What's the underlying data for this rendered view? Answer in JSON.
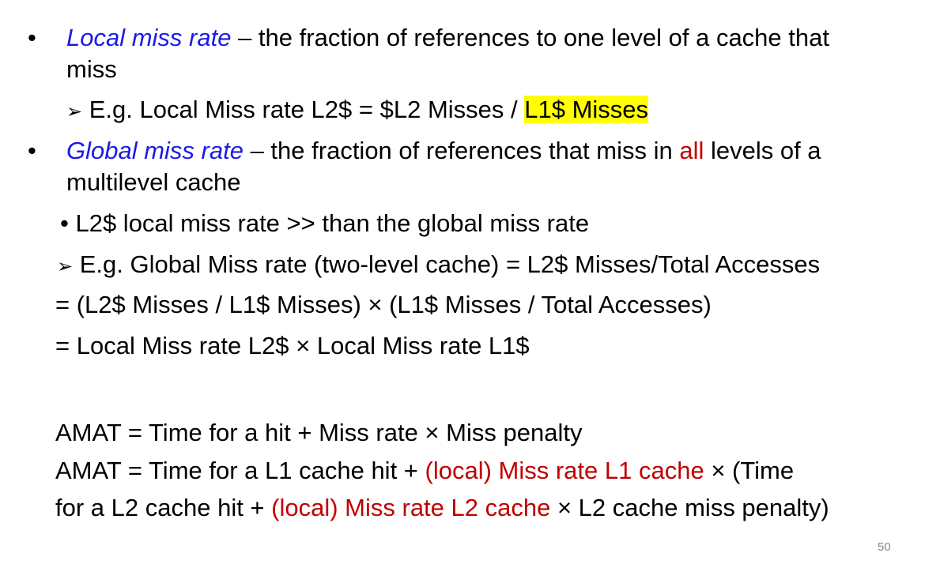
{
  "slide": {
    "bullet1": {
      "bullet": "•",
      "term": "Local miss rate",
      "rest_line1": " – the fraction of references to one level of a cache that",
      "rest_line2": "miss"
    },
    "example1": {
      "arrow": "➢",
      "text": " E.g. Local Miss rate L2$ = $L2 Misses / ",
      "highlight": "L1$ Misses"
    },
    "bullet2": {
      "bullet": "•",
      "term": "Global miss rate",
      "rest_before": " – the fraction of references that miss in ",
      "red_word": "all",
      "rest_after": " levels of a",
      "line2": "multilevel cache"
    },
    "sub_bullet": {
      "bullet": "•",
      "text": " L2$ local miss rate >> than the global miss rate"
    },
    "example2": {
      "arrow": "➢",
      "text": "  E.g. Global Miss rate (two-level cache) = L2$ Misses/Total Accesses"
    },
    "eq_line1": "= (L2$ Misses / L1$ Misses) × (L1$ Misses / Total Accesses)",
    "eq_line2": "= Local Miss rate L2$ × Local Miss rate L1$",
    "amat1": "AMAT =  Time for a hit  +  Miss rate × Miss penalty",
    "amat2": {
      "before": "AMAT =  Time for a L1 cache hit  + ",
      "red": "(local) Miss rate L1 cache",
      "after": " ×  (Time"
    },
    "amat3": {
      "before": "for a L2 cache hit + ",
      "red": "(local) Miss rate L2 cache",
      "after": " × L2 cache miss penalty)"
    },
    "page_number": "50"
  },
  "colors": {
    "term_blue": "#1a1ae6",
    "emphasis_red": "#c00000",
    "highlight_yellow": "#ffff00"
  }
}
